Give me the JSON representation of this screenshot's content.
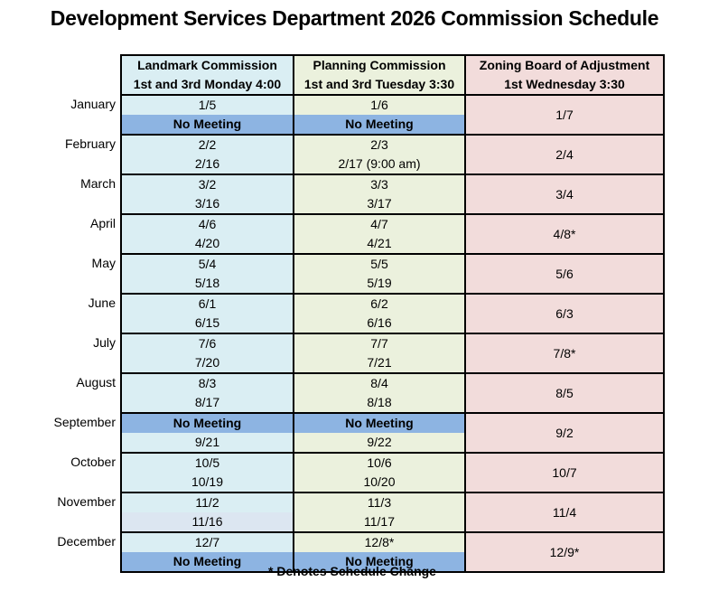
{
  "title": "Development Services Department 2026 Commission Schedule",
  "footnote": "* Denotes Schedule Change",
  "colors": {
    "landmark_bg": "#daeef3",
    "planning_bg": "#ebf1dd",
    "zoning_bg": "#f2dcdb",
    "no_meeting_bg": "#8db4e2",
    "alt_row_bg": "#dce6f1",
    "border": "#000000"
  },
  "columns": [
    {
      "name": "Landmark Commission",
      "schedule": "1st and 3rd Monday 4:00"
    },
    {
      "name": "Planning Commission",
      "schedule": "1st and 3rd Tuesday 3:30"
    },
    {
      "name": "Zoning Board of Adjustment",
      "schedule": "1st Wednesday 3:30"
    }
  ],
  "months": [
    {
      "label": "January",
      "landmark": [
        "1/5",
        "No Meeting"
      ],
      "planning": [
        "1/6",
        "No Meeting"
      ],
      "zoning": "1/7"
    },
    {
      "label": "February",
      "landmark": [
        "2/2",
        "2/16"
      ],
      "planning": [
        "2/3",
        "2/17 (9:00 am)"
      ],
      "zoning": "2/4"
    },
    {
      "label": "March",
      "landmark": [
        "3/2",
        "3/16"
      ],
      "planning": [
        "3/3",
        "3/17"
      ],
      "zoning": "3/4"
    },
    {
      "label": "April",
      "landmark": [
        "4/6",
        "4/20"
      ],
      "planning": [
        "4/7",
        "4/21"
      ],
      "zoning": "4/8*"
    },
    {
      "label": "May",
      "landmark": [
        "5/4",
        "5/18"
      ],
      "planning": [
        "5/5",
        "5/19"
      ],
      "zoning": "5/6"
    },
    {
      "label": "June",
      "landmark": [
        "6/1",
        "6/15"
      ],
      "planning": [
        "6/2",
        "6/16"
      ],
      "zoning": "6/3"
    },
    {
      "label": "July",
      "landmark": [
        "7/6",
        "7/20"
      ],
      "planning": [
        "7/7",
        "7/21"
      ],
      "zoning": "7/8*"
    },
    {
      "label": "August",
      "landmark": [
        "8/3",
        "8/17"
      ],
      "planning": [
        "8/4",
        "8/18"
      ],
      "zoning": "8/5"
    },
    {
      "label": "September",
      "landmark": [
        "No Meeting",
        "9/21"
      ],
      "planning": [
        "No Meeting",
        "9/22"
      ],
      "zoning": "9/2"
    },
    {
      "label": "October",
      "landmark": [
        "10/5",
        "10/19"
      ],
      "planning": [
        "10/6",
        "10/20"
      ],
      "zoning": "10/7"
    },
    {
      "label": "November",
      "landmark": [
        "11/2",
        "11/16"
      ],
      "planning": [
        "11/3",
        "11/17"
      ],
      "zoning": "11/4"
    },
    {
      "label": "December",
      "landmark": [
        "12/7",
        "No Meeting"
      ],
      "planning": [
        "12/8*",
        "No Meeting"
      ],
      "zoning": "12/9*"
    }
  ]
}
